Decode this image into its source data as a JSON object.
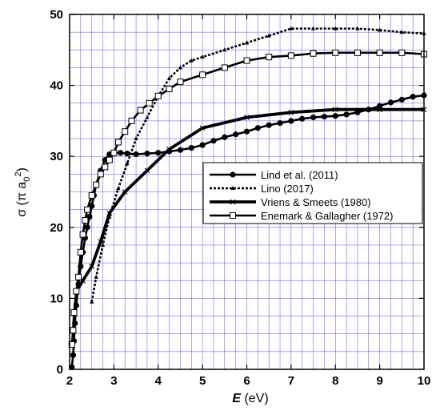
{
  "chart_data": {
    "type": "line",
    "xlabel": "E (eV)",
    "ylabel": "σ (π a0 2)",
    "xlim": [
      2,
      10
    ],
    "ylim": [
      0,
      50
    ],
    "xticks": [
      "2",
      "3",
      "4",
      "5",
      "6",
      "7",
      "8",
      "9",
      "10"
    ],
    "yticks": [
      "0",
      "10",
      "20",
      "30",
      "40",
      "50"
    ],
    "grid": true,
    "legend_position": "center-right",
    "series": [
      {
        "name": "Lind et al. (2011)",
        "color": "#000000",
        "style": "solid",
        "marker": "filled-circle",
        "x": [
          2.05,
          2.08,
          2.1,
          2.12,
          2.15,
          2.2,
          2.25,
          2.3,
          2.35,
          2.4,
          2.45,
          2.5,
          2.55,
          2.6,
          2.7,
          2.8,
          2.9,
          3.0,
          3.15,
          3.3,
          3.5,
          3.75,
          4.0,
          4.25,
          4.5,
          4.75,
          5.0,
          5.25,
          5.5,
          5.75,
          6.0,
          6.25,
          6.5,
          6.75,
          7.0,
          7.25,
          7.5,
          7.75,
          8.0,
          8.25,
          8.5,
          8.75,
          9.0,
          9.25,
          9.5,
          9.75,
          10.0
        ],
        "y": [
          0.3,
          2.0,
          4.0,
          6.5,
          9.0,
          12.0,
          14.5,
          16.5,
          18.5,
          20.0,
          21.5,
          23.0,
          24.5,
          26.0,
          28.0,
          29.5,
          30.3,
          30.5,
          30.5,
          30.4,
          30.3,
          30.4,
          30.5,
          30.7,
          30.9,
          31.2,
          31.6,
          32.2,
          32.7,
          33.1,
          33.5,
          34.0,
          34.4,
          34.7,
          35.0,
          35.3,
          35.5,
          35.6,
          35.7,
          35.9,
          36.2,
          36.6,
          37.1,
          37.6,
          38.0,
          38.4,
          38.6
        ]
      },
      {
        "name": "Lino (2017)",
        "color": "#000000",
        "style": "dotted",
        "marker": "small-triangle",
        "x": [
          2.5,
          2.6,
          2.75,
          2.9,
          3.1,
          3.3,
          3.5,
          3.75,
          4.0,
          4.25,
          4.5,
          4.75,
          5.0,
          5.5,
          6.0,
          6.5,
          7.0,
          7.5,
          8.0,
          8.5,
          9.0,
          9.5,
          10.0
        ],
        "y": [
          9.5,
          13.0,
          17.5,
          21.5,
          25.5,
          29.0,
          32.5,
          35.5,
          38.5,
          41.0,
          42.5,
          43.5,
          44.0,
          45.0,
          46.0,
          47.0,
          48.0,
          48.0,
          48.0,
          48.0,
          47.8,
          47.5,
          47.3
        ]
      },
      {
        "name": "Vriens & Smeets (1980)",
        "color": "#000000",
        "style": "solid-thick",
        "marker": "x",
        "x": [
          2.15,
          2.3,
          2.5,
          2.7,
          2.9,
          3.25,
          3.75,
          4.25,
          5.0,
          6.0,
          7.0,
          8.0,
          9.0,
          10.0
        ],
        "y": [
          11.0,
          12.5,
          14.5,
          18.0,
          22.0,
          25.0,
          28.0,
          31.0,
          34.0,
          35.5,
          36.2,
          36.6,
          36.6,
          36.6
        ]
      },
      {
        "name": "Enemark & Gallagher (1972)",
        "color": "#000000",
        "style": "solid",
        "marker": "open-square",
        "x": [
          2.05,
          2.08,
          2.1,
          2.15,
          2.2,
          2.25,
          2.3,
          2.35,
          2.4,
          2.5,
          2.6,
          2.7,
          2.8,
          2.9,
          3.0,
          3.1,
          3.25,
          3.4,
          3.6,
          3.8,
          4.0,
          4.25,
          4.5,
          5.0,
          5.5,
          6.0,
          6.5,
          7.0,
          7.5,
          8.0,
          8.5,
          9.0,
          9.5,
          10.0
        ],
        "y": [
          3.5,
          5.5,
          8.0,
          11.0,
          13.0,
          16.5,
          19.0,
          21.0,
          22.5,
          24.5,
          26.0,
          27.5,
          28.5,
          29.5,
          30.5,
          32.0,
          33.5,
          35.0,
          36.5,
          37.5,
          38.5,
          39.5,
          40.5,
          41.5,
          42.5,
          43.5,
          44.0,
          44.2,
          44.5,
          44.6,
          44.6,
          44.6,
          44.6,
          44.4
        ]
      }
    ]
  }
}
